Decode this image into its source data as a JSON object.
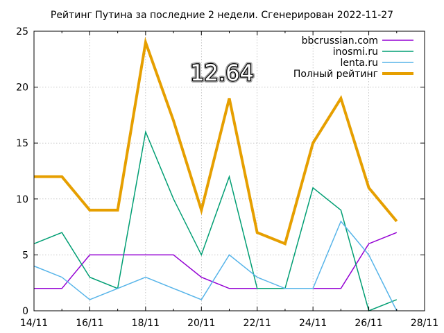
{
  "chart_data": {
    "type": "line",
    "title": "Рейтинг Путина за последние 2 недели. Сгенерирован 2022-11-27",
    "x_tick_labels": [
      "14/11",
      "16/11",
      "18/11",
      "20/11",
      "22/11",
      "24/11",
      "26/11",
      "28/11"
    ],
    "x_tick_values": [
      14,
      16,
      18,
      20,
      22,
      24,
      26,
      28
    ],
    "x_minor_ticks": [
      15,
      17,
      19,
      21,
      23,
      25,
      27
    ],
    "xlim": [
      14,
      28
    ],
    "y_ticks": [
      0,
      5,
      10,
      15,
      20,
      25
    ],
    "ylim": [
      0,
      25
    ],
    "grid": true,
    "legend_position": "top-right",
    "x": [
      14,
      15,
      16,
      17,
      18,
      19,
      20,
      21,
      22,
      23,
      24,
      25,
      26,
      27
    ],
    "series": [
      {
        "name": "bbcrussian.com",
        "color": "#9400d3",
        "width": 1.5,
        "values": [
          2,
          2,
          5,
          5,
          5,
          5,
          3,
          2,
          2,
          2,
          2,
          2,
          6,
          7
        ]
      },
      {
        "name": "inosmi.ru",
        "color": "#009e73",
        "width": 1.5,
        "values": [
          6,
          7,
          3,
          2,
          16,
          10,
          5,
          12,
          2,
          2,
          11,
          9,
          0,
          1
        ]
      },
      {
        "name": "lenta.ru",
        "color": "#56b4e9",
        "width": 1.5,
        "values": [
          4,
          3,
          1,
          2,
          3,
          2,
          1,
          5,
          3,
          2,
          2,
          8,
          5,
          0
        ]
      },
      {
        "name": "Полный рейтинг",
        "color": "#e69f00",
        "width": 4,
        "values": [
          12,
          12,
          9,
          9,
          24,
          17,
          9,
          19,
          7,
          6,
          15,
          19,
          11,
          8
        ]
      }
    ],
    "annotation": "12.64"
  }
}
